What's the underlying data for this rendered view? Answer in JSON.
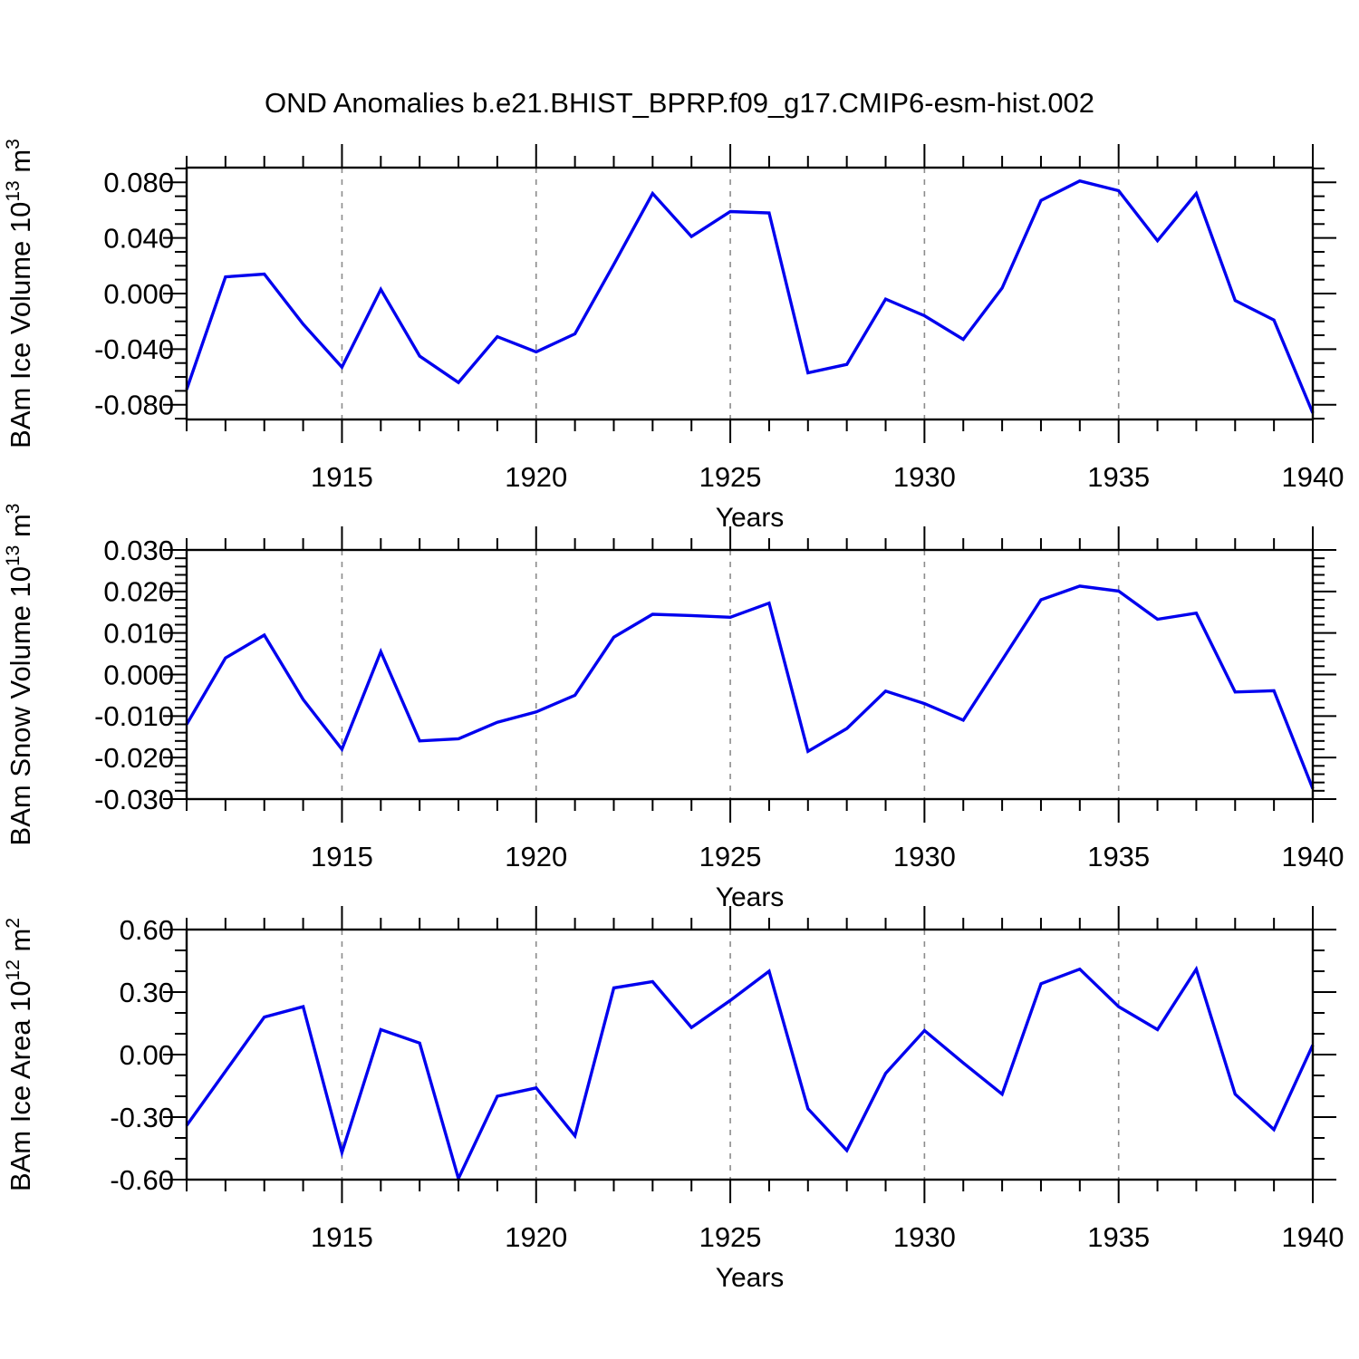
{
  "title": "OND Anomalies b.e21.BHIST_BPRP.f09_g17.CMIP6-esm-hist.002",
  "years": [
    1911,
    1912,
    1913,
    1914,
    1915,
    1916,
    1917,
    1918,
    1919,
    1920,
    1921,
    1922,
    1923,
    1924,
    1925,
    1926,
    1927,
    1928,
    1929,
    1930,
    1931,
    1932,
    1933,
    1934,
    1935,
    1936,
    1937,
    1938,
    1939,
    1940
  ],
  "xaxis": {
    "label": "Years",
    "range": [
      1911,
      1940
    ],
    "major_ticks": [
      1915,
      1920,
      1925,
      1930,
      1935,
      1940
    ],
    "minor_step": 1,
    "gridlines_at": [
      1915,
      1920,
      1925,
      1930,
      1935
    ]
  },
  "line_color": "#0000ee",
  "grid_color": "#8c8c8c",
  "chart_data": [
    {
      "id": "ice-volume",
      "type": "line",
      "ylabel": "BAm Ice Volume 10^13 m^3",
      "xlabel": "Years",
      "ylim": [
        -0.0906,
        0.0906
      ],
      "yticks_major": [
        -0.08,
        -0.04,
        0.0,
        0.04,
        0.08
      ],
      "ytick_minor_step": 0.01,
      "ytick_decimals": 3,
      "values": [
        -0.069,
        0.012,
        0.014,
        -0.022,
        -0.053,
        0.003,
        -0.045,
        -0.064,
        -0.031,
        -0.042,
        -0.029,
        0.021,
        0.072,
        0.041,
        0.059,
        0.058,
        -0.057,
        -0.051,
        -0.004,
        -0.016,
        -0.033,
        0.004,
        0.067,
        0.081,
        0.074,
        0.038,
        0.072,
        -0.005,
        -0.019,
        -0.086
      ]
    },
    {
      "id": "snow-volume",
      "type": "line",
      "ylabel": "BAm Snow Volume 10^13 m^3",
      "xlabel": "Years",
      "ylim": [
        -0.03,
        0.03
      ],
      "yticks_major": [
        -0.03,
        -0.02,
        -0.01,
        0.0,
        0.01,
        0.02,
        0.03
      ],
      "ytick_minor_step": 0.002,
      "ytick_decimals": 3,
      "values": [
        -0.012,
        0.004,
        0.0095,
        -0.006,
        -0.018,
        0.0055,
        -0.016,
        -0.0155,
        -0.0115,
        -0.009,
        -0.005,
        0.009,
        0.0145,
        0.0142,
        0.0138,
        0.0172,
        -0.0185,
        -0.013,
        -0.004,
        -0.007,
        -0.011,
        0.0035,
        0.018,
        0.0213,
        0.0201,
        0.0133,
        0.0148,
        -0.0042,
        -0.0039,
        -0.0275
      ]
    },
    {
      "id": "ice-area",
      "type": "line",
      "ylabel": "BAm Ice Area 10^12 m^2",
      "xlabel": "Years",
      "ylim": [
        -0.6,
        0.6
      ],
      "yticks_major": [
        -0.6,
        -0.3,
        0.0,
        0.3,
        0.6
      ],
      "ytick_minor_step": 0.1,
      "ytick_decimals": 2,
      "values": [
        -0.34,
        -0.08,
        0.18,
        0.23,
        -0.47,
        0.12,
        0.055,
        -0.595,
        -0.2,
        -0.16,
        -0.39,
        0.32,
        0.35,
        0.13,
        0.26,
        0.4,
        -0.26,
        -0.46,
        -0.09,
        0.115,
        -0.04,
        -0.19,
        0.34,
        0.41,
        0.23,
        0.12,
        0.41,
        -0.19,
        -0.36,
        0.046
      ]
    }
  ]
}
